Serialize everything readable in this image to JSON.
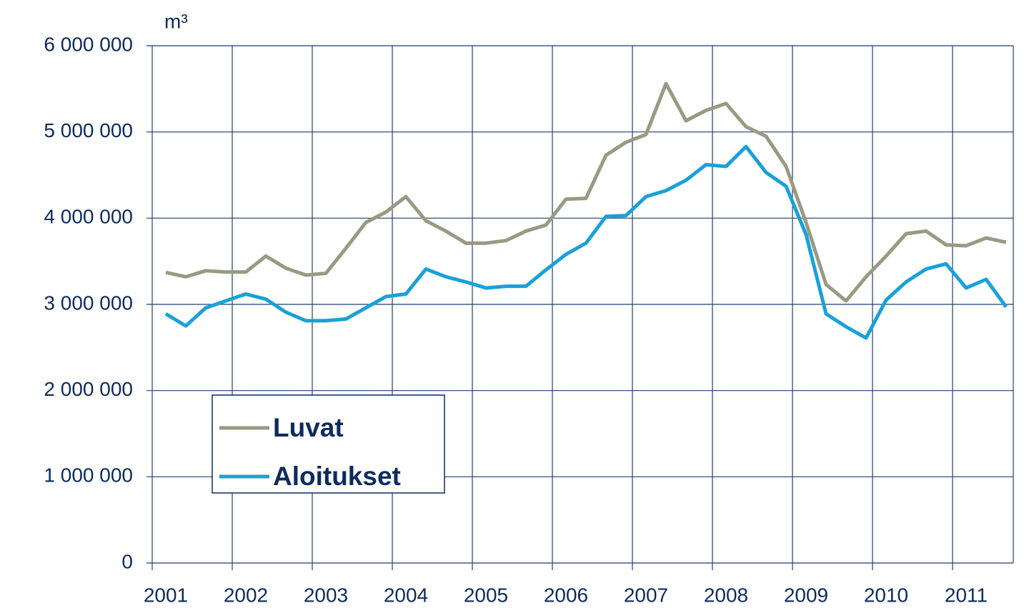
{
  "chart_data": {
    "type": "line",
    "ylabel": "m³",
    "categories": [
      "2001",
      null,
      null,
      null,
      "2002",
      null,
      null,
      null,
      "2003",
      null,
      null,
      null,
      "2004",
      null,
      null,
      null,
      "2005",
      null,
      null,
      null,
      "2006",
      null,
      null,
      null,
      "2007",
      null,
      null,
      null,
      "2008",
      null,
      null,
      null,
      "2009",
      null,
      null,
      null,
      "2010",
      null,
      null,
      null,
      "2011",
      null,
      null
    ],
    "series": [
      {
        "name": "Luvat",
        "color": "#999a83",
        "values": [
          3370000,
          3320000,
          3390000,
          3375000,
          3375000,
          3560000,
          3420000,
          3340000,
          3360000,
          3650000,
          3950000,
          4070000,
          4250000,
          3970000,
          3850000,
          3710000,
          3710000,
          3740000,
          3850000,
          3920000,
          4220000,
          4230000,
          4730000,
          4880000,
          4970000,
          5560000,
          5130000,
          5250000,
          5330000,
          5060000,
          4950000,
          4600000,
          3950000,
          3230000,
          3040000,
          3320000,
          3560000,
          3820000,
          3850000,
          3690000,
          3680000,
          3770000,
          3720000
        ]
      },
      {
        "name": "Aloitukset",
        "color": "#1aa1d8",
        "values": [
          2890000,
          2750000,
          2960000,
          3040000,
          3120000,
          3060000,
          2910000,
          2810000,
          2810000,
          2830000,
          2960000,
          3090000,
          3120000,
          3410000,
          3320000,
          3260000,
          3190000,
          3210000,
          3210000,
          3400000,
          3580000,
          3710000,
          4020000,
          4030000,
          4250000,
          4320000,
          4440000,
          4620000,
          4600000,
          4830000,
          4530000,
          4370000,
          3810000,
          2890000,
          2740000,
          2610000,
          3050000,
          3260000,
          3410000,
          3470000,
          3190000,
          3290000,
          2970000
        ]
      }
    ],
    "ylim": [
      0,
      6000000
    ],
    "yticks": [
      0,
      {
        "value": 1000000,
        "label": "1 000 000"
      },
      {
        "value": 2000000,
        "label": "2 000 000"
      },
      {
        "value": 3000000,
        "label": "3 000 000"
      },
      {
        "value": 4000000,
        "label": "4 000 000"
      },
      {
        "value": 5000000,
        "label": "5 000 000"
      },
      {
        "value": 6000000,
        "label": "6 000 000"
      }
    ],
    "grid": true,
    "legend": "lower left"
  }
}
